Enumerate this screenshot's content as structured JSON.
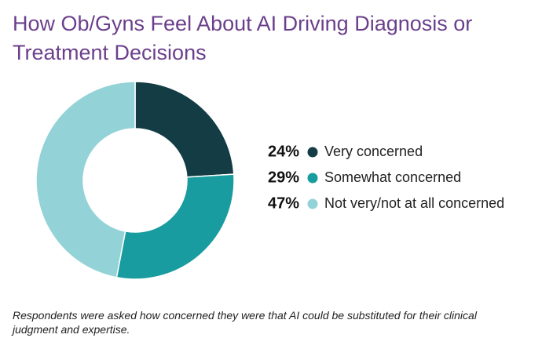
{
  "chart_data": {
    "type": "donut",
    "title": "How Ob/Gyns Feel About AI Driving Diagnosis or Treatment Decisions",
    "categories": [
      "Very concerned",
      "Somewhat concerned",
      "Not very/not at all concerned"
    ],
    "values": [
      24,
      29,
      47
    ],
    "value_labels": [
      "24%",
      "29%",
      "47%"
    ],
    "colors": [
      "#133c45",
      "#189c9f",
      "#93d3d8"
    ],
    "footnote": "Respondents were asked how concerned they were that AI could be substituted for their clinical judgment and expertise."
  }
}
